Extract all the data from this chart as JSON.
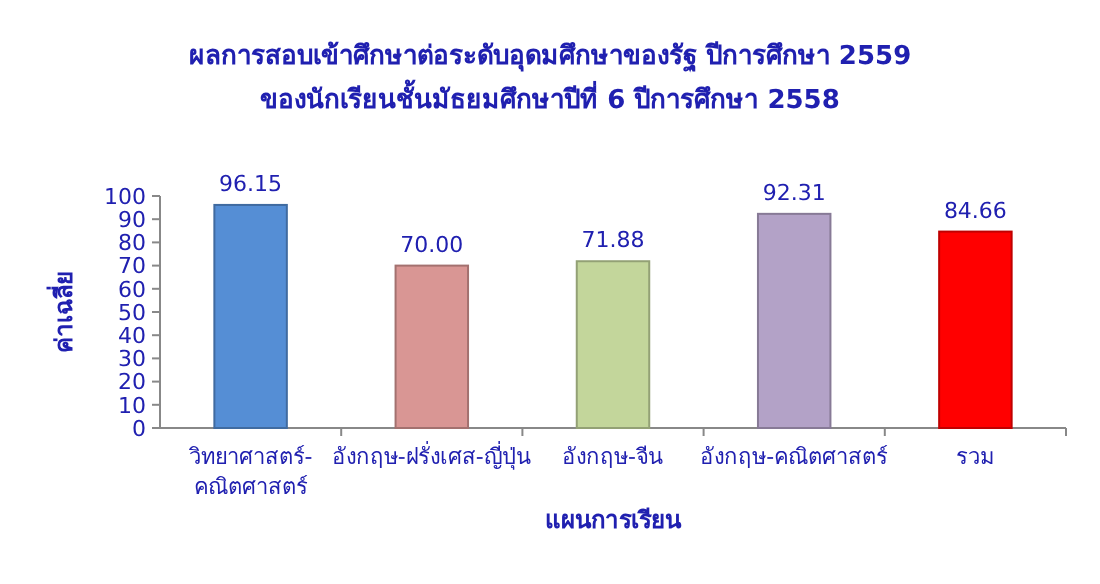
{
  "chart_data": {
    "type": "bar",
    "title": "ผลการสอบเข้าศึกษาต่อระดับอุดมศึกษาของรัฐ ปีการศึกษา 2559",
    "subtitle": "ของนักเรียนชั้นมัธยมศึกษาปีที่ 6 ปีการศึกษา 2558",
    "xlabel": "แผนการเรียน",
    "ylabel": "ค่าเฉลี่ย",
    "categories": [
      "วิทยาศาสตร์-คณิตศาสตร์",
      "อังกฤษ-ฝรั่งเศส-ญี่ปุ่น",
      "อังกฤษ-จีน",
      "อังกฤษ-คณิตศาสตร์",
      "รวม"
    ],
    "values": [
      96.15,
      70.0,
      71.88,
      92.31,
      84.66
    ],
    "colors": [
      "#558ed5",
      "#d99694",
      "#c3d69b",
      "#b3a2c7",
      "#ff0000"
    ],
    "value_labels": [
      "96.15",
      "70.00",
      "71.88",
      "92.31",
      "84.66"
    ],
    "ylim": [
      0,
      100
    ],
    "yticks": [
      0,
      10,
      20,
      30,
      40,
      50,
      60,
      70,
      80,
      90,
      100
    ]
  }
}
